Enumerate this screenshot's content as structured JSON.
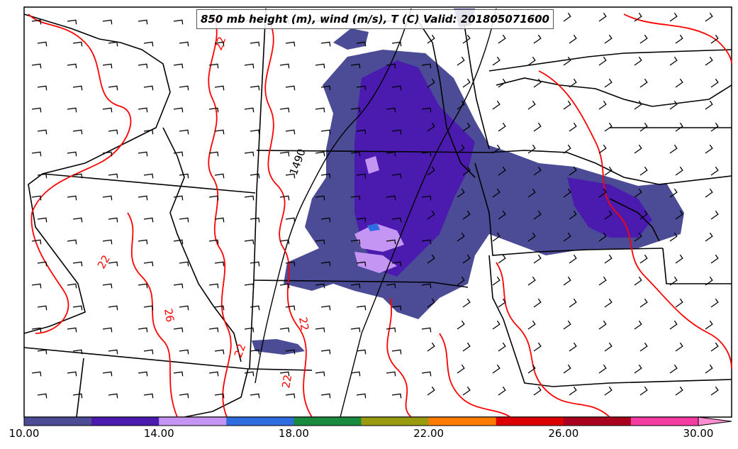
{
  "title": "850 mb height (m), wind (m/s), T (C) Valid: 201805071600",
  "colors": {
    "temperature_contour": "#ff0000",
    "height_contour": "#000000",
    "boundaries": "#000000"
  },
  "colorbar": {
    "min": 10,
    "max": 30,
    "step": 2,
    "extend": "max",
    "colors": [
      "#4b4c95",
      "#4b1bb0",
      "#c495f2",
      "#2e6ce0",
      "#1a8a3c",
      "#999a10",
      "#ff7a00",
      "#dd0000",
      "#a8001e",
      "#f53ca2",
      "#ff8fd0"
    ],
    "tick_labels": [
      "10.00",
      "14.00",
      "18.00",
      "22.00",
      "26.00",
      "30.00"
    ]
  },
  "contour_labels": {
    "temperature": [
      "22",
      "22",
      "22",
      "22",
      "26",
      "22"
    ],
    "height": [
      "1490"
    ]
  },
  "wind_barb_icon": "wind-barb-icon"
}
